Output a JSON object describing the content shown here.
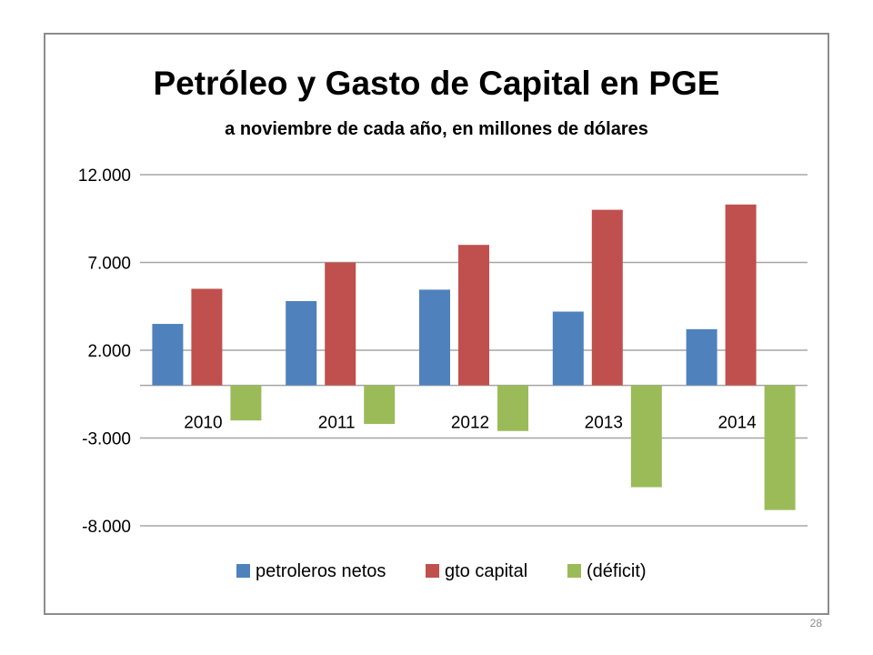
{
  "page_number": "28",
  "colors": {
    "petroleros": "#4f81bd",
    "capital": "#c0504d",
    "deficit": "#9bbb59",
    "grid": "#a6a6a6",
    "frame": "#8c8c8c"
  },
  "chart_data": {
    "type": "bar",
    "title": "Petróleo y Gasto de Capital en PGE",
    "subtitle": "a noviembre de cada año, en millones de dólares",
    "categories": [
      "2010",
      "2011",
      "2012",
      "2013",
      "2014"
    ],
    "series": [
      {
        "name": "petroleros netos",
        "values": [
          3500,
          4800,
          5450,
          4200,
          3200
        ]
      },
      {
        "name": "gto capital",
        "values": [
          5500,
          7000,
          8000,
          10000,
          10300
        ]
      },
      {
        "name": "(déficit)",
        "values": [
          -2000,
          -2200,
          -2600,
          -5800,
          -7100
        ]
      }
    ],
    "yticks": [
      "12.000",
      "7.000",
      "2.000",
      "-3.000",
      "-8.000"
    ],
    "ytick_values": [
      12000,
      7000,
      2000,
      -3000,
      -8000
    ],
    "ylim": [
      -8000,
      12000
    ],
    "grid": true,
    "legend_position": "bottom"
  }
}
